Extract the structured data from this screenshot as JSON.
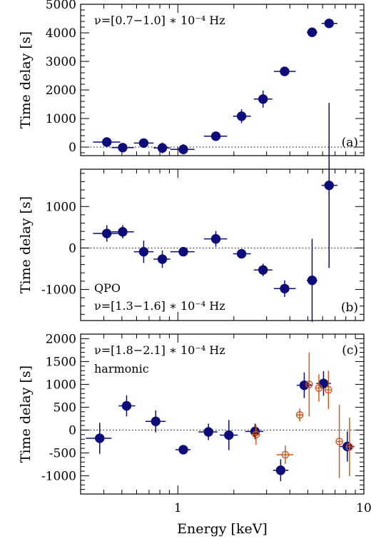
{
  "chart_data": [
    {
      "type": "scatter",
      "panel_label": "(a)",
      "annotation": [
        "ν=[0.7−1.0] ∗ 10⁻⁴ Hz"
      ],
      "ylabel": "Time delay [s]",
      "xlabel": "",
      "xscale": "log",
      "xlim": [
        0.3,
        10
      ],
      "ylim": [
        -300,
        5000
      ],
      "yticks": [
        0,
        1000,
        2000,
        3000,
        4000,
        5000
      ],
      "xticks_major": [],
      "zero_line": "dotted",
      "series": [
        {
          "color": "#0d0d7a",
          "marker": "filled-circle",
          "points": [
            {
              "x": 0.415,
              "y": 175,
              "xerr": [
                0.35,
                0.49
              ],
              "yerr": 110
            },
            {
              "x": 0.505,
              "y": -20,
              "xerr": [
                0.44,
                0.58
              ],
              "yerr": 80
            },
            {
              "x": 0.655,
              "y": 140,
              "xerr": [
                0.58,
                0.74
              ],
              "yerr": 120
            },
            {
              "x": 0.825,
              "y": -30,
              "xerr": [
                0.74,
                0.91
              ],
              "yerr": 190
            },
            {
              "x": 1.07,
              "y": -80,
              "xerr": [
                0.91,
                1.23
              ],
              "yerr": 180
            },
            {
              "x": 1.6,
              "y": 380,
              "xerr": [
                1.38,
                1.84
              ],
              "yerr": 80
            },
            {
              "x": 2.2,
              "y": 1080,
              "xerr": [
                1.98,
                2.47
              ],
              "yerr": 240
            },
            {
              "x": 2.87,
              "y": 1680,
              "xerr": [
                2.56,
                3.22
              ],
              "yerr": 300
            },
            {
              "x": 3.75,
              "y": 2650,
              "xerr": [
                3.28,
                4.3
              ],
              "yerr": 150
            },
            {
              "x": 5.27,
              "y": 4020,
              "xerr": [
                4.93,
                5.62
              ],
              "yerr": 110
            },
            {
              "x": 6.5,
              "y": 4330,
              "xerr": [
                5.92,
                7.2
              ],
              "yerr": 70
            }
          ]
        }
      ]
    },
    {
      "type": "scatter",
      "panel_label": "(b)",
      "annotation": [
        "QPO",
        "ν=[1.3−1.6] ∗ 10⁻⁴ Hz"
      ],
      "ylabel": "Time delay [s]",
      "xlabel": "",
      "xscale": "log",
      "xlim": [
        0.3,
        10
      ],
      "ylim": [
        -1750,
        1900
      ],
      "yticks": [
        -1000,
        0,
        1000
      ],
      "xticks_major": [],
      "zero_line": "dotted",
      "series": [
        {
          "color": "#0d0d7a",
          "marker": "filled-circle",
          "points": [
            {
              "x": 0.415,
              "y": 350,
              "xerr": [
                0.35,
                0.49
              ],
              "yerr": 200
            },
            {
              "x": 0.505,
              "y": 390,
              "xerr": [
                0.44,
                0.58
              ],
              "yerr": 160
            },
            {
              "x": 0.655,
              "y": -90,
              "xerr": [
                0.58,
                0.74
              ],
              "yerr": 270
            },
            {
              "x": 0.825,
              "y": -270,
              "xerr": [
                0.74,
                0.91
              ],
              "yerr": 210
            },
            {
              "x": 1.07,
              "y": -90,
              "xerr": [
                0.91,
                1.23
              ],
              "yerr": 80
            },
            {
              "x": 1.6,
              "y": 220,
              "xerr": [
                1.38,
                1.84
              ],
              "yerr": 190
            },
            {
              "x": 2.2,
              "y": -140,
              "xerr": [
                1.98,
                2.47
              ],
              "yerr": 90
            },
            {
              "x": 2.87,
              "y": -530,
              "xerr": [
                2.56,
                3.22
              ],
              "yerr": 150
            },
            {
              "x": 3.75,
              "y": -980,
              "xerr": [
                3.28,
                4.3
              ],
              "yerr": 200
            },
            {
              "x": 5.27,
              "y": -780,
              "xerr": [
                4.93,
                5.62
              ],
              "yerr": 1000
            },
            {
              "x": 6.5,
              "y": 1510,
              "xerr": [
                5.92,
                7.2
              ],
              "yerr": 1990
            }
          ]
        }
      ]
    },
    {
      "type": "scatter",
      "panel_label": "(c)",
      "annotation": [
        "ν=[1.8−2.1] ∗ 10⁻⁴ Hz",
        "harmonic"
      ],
      "ylabel": "Time delay [s]",
      "xlabel": "Energy [keV]",
      "xscale": "log",
      "xlim": [
        0.3,
        10
      ],
      "ylim": [
        -1400,
        2100
      ],
      "yticks": [
        -1000,
        -500,
        0,
        500,
        1000,
        1500,
        2000
      ],
      "xticks_major": [
        1,
        10
      ],
      "zero_line": "dotted",
      "series": [
        {
          "color": "#0d0d7a",
          "marker": "filled-circle",
          "points": [
            {
              "x": 0.38,
              "y": -180,
              "xerr": [
                0.32,
                0.44
              ],
              "yerr": 340
            },
            {
              "x": 0.53,
              "y": 530,
              "xerr": [
                0.48,
                0.59
              ],
              "yerr": 230
            },
            {
              "x": 0.76,
              "y": 190,
              "xerr": [
                0.67,
                0.86
              ],
              "yerr": 240
            },
            {
              "x": 1.07,
              "y": -430,
              "xerr": [
                0.97,
                1.17
              ],
              "yerr": 90
            },
            {
              "x": 1.46,
              "y": -40,
              "xerr": [
                1.29,
                1.63
              ],
              "yerr": 180
            },
            {
              "x": 1.88,
              "y": -110,
              "xerr": [
                1.68,
                2.1
              ],
              "yerr": 330
            },
            {
              "x": 2.6,
              "y": -30,
              "xerr": [
                2.3,
                2.88
              ],
              "yerr": 170
            },
            {
              "x": 3.57,
              "y": -880,
              "xerr": [
                3.25,
                3.93
              ],
              "yerr": 240
            },
            {
              "x": 4.78,
              "y": 980,
              "xerr": [
                4.35,
                5.25
              ],
              "yerr": 280
            },
            {
              "x": 6.07,
              "y": 1020,
              "xerr": [
                5.55,
                6.65
              ],
              "yerr": 270
            },
            {
              "x": 8.15,
              "y": -360,
              "xerr": [
                7.45,
                8.9
              ],
              "yerr": 330
            }
          ]
        },
        {
          "color": "#d05a1e",
          "marker": "open-circle-cross",
          "points": [
            {
              "x": 2.63,
              "y": -100,
              "xerr": [
                2.5,
                2.77
              ],
              "yerr": 220
            },
            {
              "x": 3.78,
              "y": -540,
              "xerr": [
                3.4,
                4.17
              ],
              "yerr": 200
            },
            {
              "x": 4.52,
              "y": 330,
              "xerr": [
                4.35,
                4.7
              ],
              "yerr": 140
            },
            {
              "x": 5.08,
              "y": 1000,
              "xerr": [
                4.95,
                5.22
              ],
              "yerr": 700
            },
            {
              "x": 5.73,
              "y": 920,
              "xerr": [
                5.55,
                5.92
              ],
              "yerr": 300
            },
            {
              "x": 6.45,
              "y": 880,
              "xerr": [
                6.25,
                6.65
              ],
              "yerr": 420
            },
            {
              "x": 7.38,
              "y": -250,
              "xerr": [
                7.15,
                7.62
              ],
              "yerr": 800
            },
            {
              "x": 8.37,
              "y": -370,
              "xerr": [
                8.12,
                8.62
              ],
              "yerr": 640
            }
          ]
        }
      ]
    }
  ]
}
